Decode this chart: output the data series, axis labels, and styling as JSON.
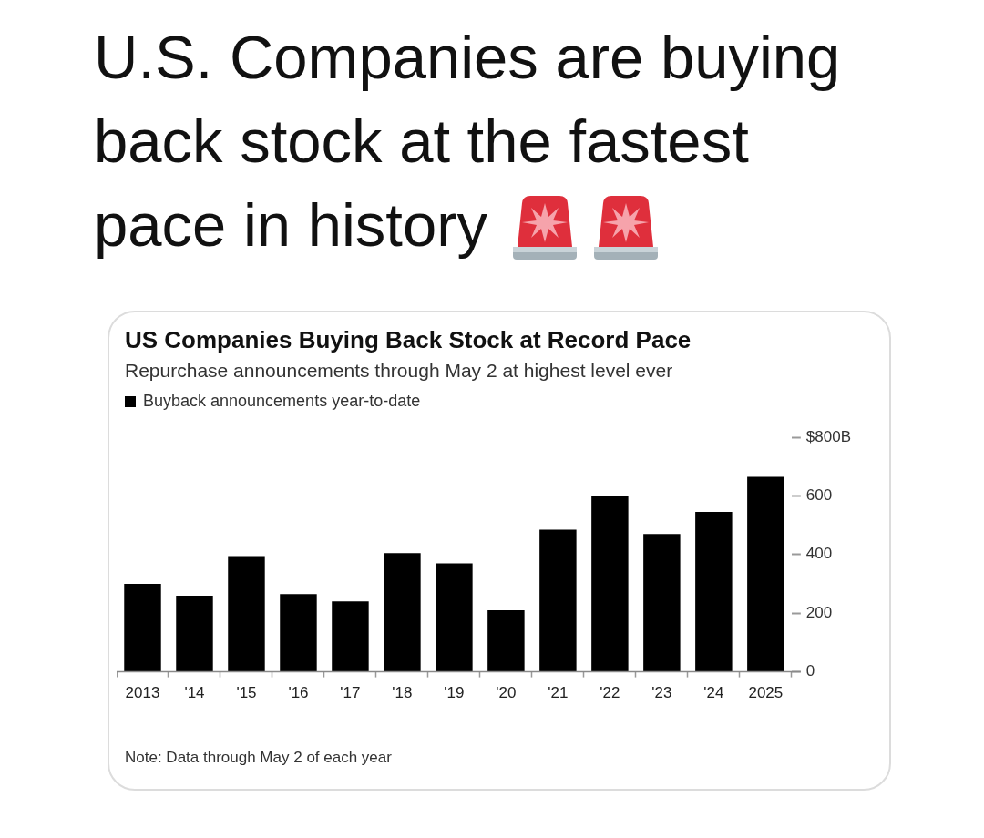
{
  "chart_data": {
    "type": "bar",
    "title": "US Companies Buying Back Stock at Record Pace",
    "subtitle": "Repurchase announcements through May 2 at highest level ever",
    "annotations": [
      "U.S. Companies are buying back stock at the fastest pace in history",
      "Note: Data through May 2 of each year"
    ],
    "categories": [
      "2013",
      "'14",
      "'15",
      "'16",
      "'17",
      "'18",
      "'19",
      "'20",
      "'21",
      "'22",
      "'23",
      "'24",
      "2025"
    ],
    "series": [
      {
        "name": "Buyback announcements year-to-date",
        "color": "#000000",
        "values": [
          300,
          260,
          395,
          265,
          240,
          405,
          370,
          210,
          485,
          600,
          470,
          545,
          665
        ]
      }
    ],
    "ylim": [
      0,
      800
    ],
    "yticks": [
      0,
      200,
      400,
      600,
      {
        "value": 800,
        "label": "$800B"
      }
    ],
    "legend": "top left"
  }
}
